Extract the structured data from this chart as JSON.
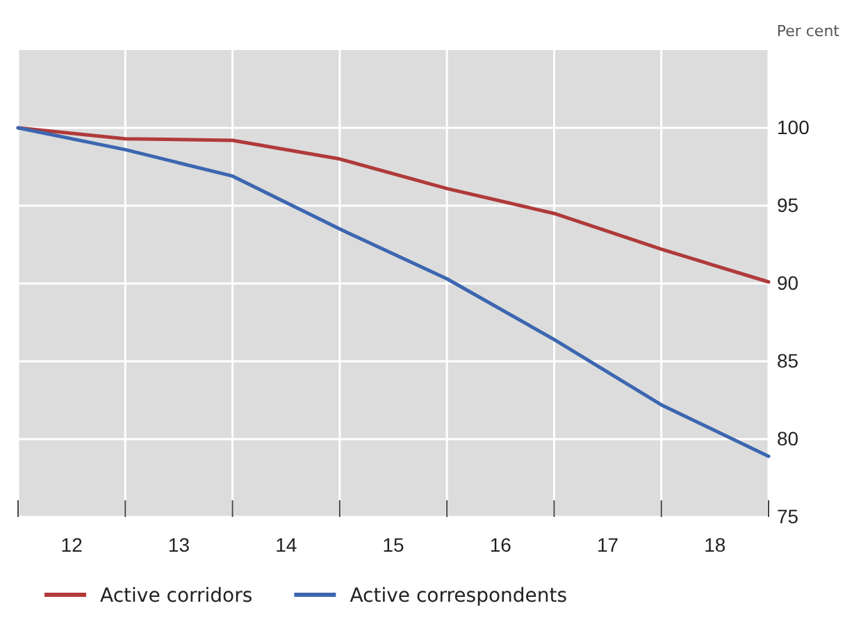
{
  "chart_data": {
    "type": "line",
    "ylabel": "Per cent",
    "x": [
      12,
      13,
      14,
      15,
      16,
      17,
      18,
      19
    ],
    "series": [
      {
        "name": "Active corridors",
        "color": "#b03a3a",
        "values": [
          100,
          99.3,
          99.2,
          98.0,
          96.1,
          94.5,
          92.2,
          90.1
        ]
      },
      {
        "name": "Active correspondents",
        "color": "#3c66b0",
        "values": [
          100,
          98.6,
          96.9,
          93.5,
          90.3,
          86.4,
          82.2,
          78.9
        ]
      }
    ],
    "xlim": [
      12,
      19
    ],
    "xticks": [
      {
        "value": 12,
        "label": null
      },
      {
        "value": 12.5,
        "label": "12"
      },
      {
        "value": 13,
        "label": null
      },
      {
        "value": 13.5,
        "label": "13"
      },
      {
        "value": 14,
        "label": null
      },
      {
        "value": 14.5,
        "label": "14"
      },
      {
        "value": 15,
        "label": null
      },
      {
        "value": 15.5,
        "label": "15"
      },
      {
        "value": 16,
        "label": null
      },
      {
        "value": 16.5,
        "label": "16"
      },
      {
        "value": 17,
        "label": null
      },
      {
        "value": 17.5,
        "label": "17"
      },
      {
        "value": 18,
        "label": null
      },
      {
        "value": 18.5,
        "label": "18"
      },
      {
        "value": 19,
        "label": null
      }
    ],
    "ylim": [
      75,
      105
    ],
    "yticks": [
      75,
      80,
      85,
      90,
      95,
      100
    ],
    "grid": true,
    "legend": "bottom",
    "marker": "none",
    "line_style": "solid"
  }
}
